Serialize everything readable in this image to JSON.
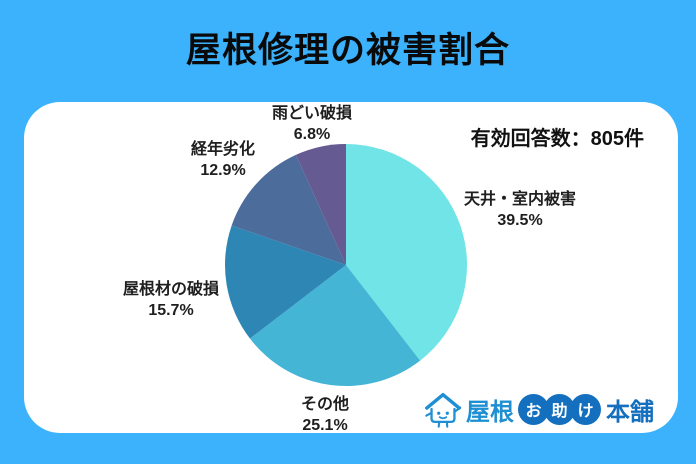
{
  "page": {
    "title": "屋根修理の被害割合",
    "background_color": "#3BB2FB"
  },
  "chart_data": {
    "type": "pie",
    "title": "屋根修理の被害割合",
    "annotation": "有効回答数：805件",
    "unit": "%",
    "start_angle": "top (12 o'clock)",
    "direction": "clockwise",
    "slices": [
      {
        "label": "天井・室内被害",
        "value": 39.5,
        "pct_label": "39.5%",
        "color": "#70E4E6"
      },
      {
        "label": "その他",
        "value": 25.1,
        "pct_label": "25.1%",
        "color": "#45B5D6"
      },
      {
        "label": "屋根材の破損",
        "value": 15.7,
        "pct_label": "15.7%",
        "color": "#2E86B4"
      },
      {
        "label": "経年劣化",
        "value": 12.9,
        "pct_label": "12.9%",
        "color": "#4C6C9C"
      },
      {
        "label": "雨どい破損",
        "value": 6.8,
        "pct_label": "6.8%",
        "color": "#655A91"
      }
    ]
  },
  "logo": {
    "name": "屋根お助け本舗",
    "text_yane": "屋根",
    "bubble_chars": [
      "お",
      "助",
      "け"
    ],
    "text_honpo": "本舗",
    "brand_blue": "#1E8FD3",
    "brand_deep_blue": "#1470BE"
  }
}
